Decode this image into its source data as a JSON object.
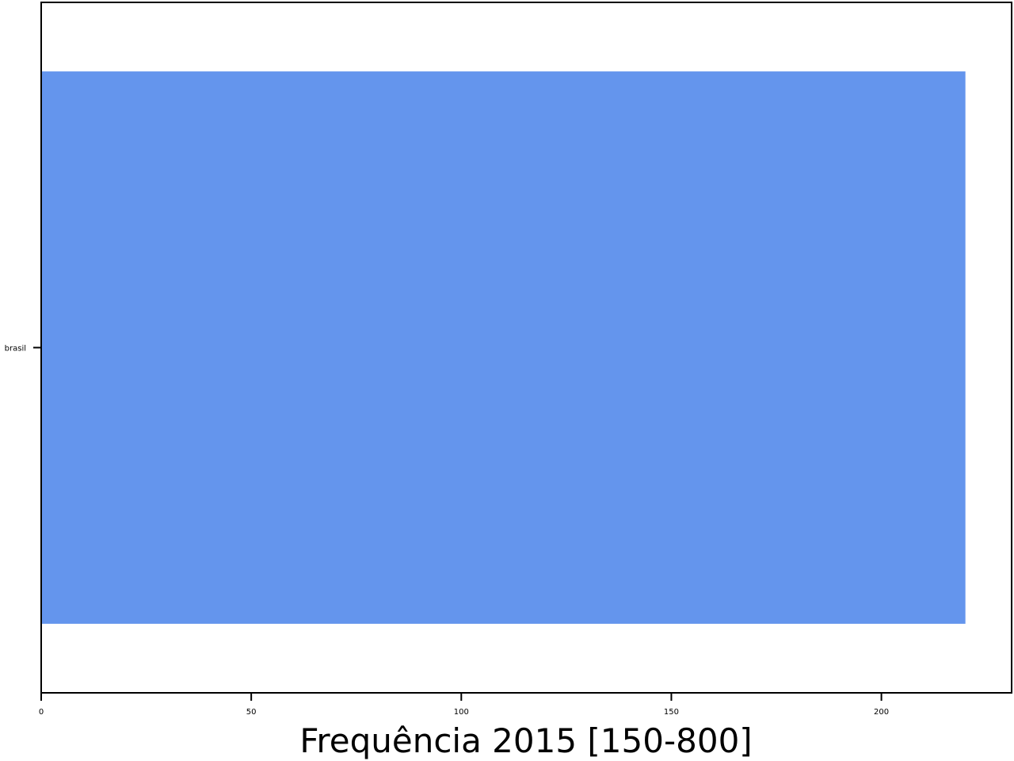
{
  "chart_data": {
    "type": "bar",
    "orientation": "horizontal",
    "categories": [
      "brasil"
    ],
    "values": [
      220
    ],
    "title": "",
    "xlabel": "Frequência 2015 [150-800]",
    "ylabel": "",
    "xlim": [
      0,
      231
    ],
    "x_ticks": [
      "0",
      "50",
      "100",
      "150",
      "200"
    ],
    "x_tick_values": [
      0,
      50,
      100,
      150,
      200
    ],
    "bar_color": "#6495ed",
    "grid": false,
    "legend": "none"
  }
}
